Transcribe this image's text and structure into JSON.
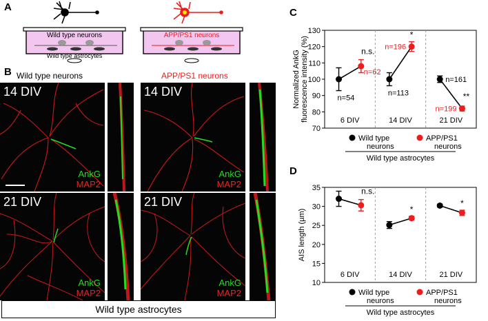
{
  "panels": {
    "a": {
      "letter": "A",
      "dish_left": {
        "top_label": "Wild type neurons",
        "bottom_label": "Wild type astrocytes"
      },
      "dish_right": {
        "top_label": "APP/PS1 neurons"
      }
    },
    "b": {
      "letter": "B",
      "col_left": "Wild type neurons",
      "col_right": "APP/PS1 neurons",
      "row1_label": "14 DIV",
      "row2_label": "21 DIV",
      "stain_green": "AnkG",
      "stain_red": "MAP2",
      "bottom_box": "Wild type astrocytes"
    },
    "c": {
      "letter": "C"
    },
    "d": {
      "letter": "D"
    }
  },
  "colors": {
    "wild_type": "#000000",
    "app_ps1": "#ee1c1c",
    "ankg": "#22dd22",
    "map2": "#ee2222"
  },
  "chart_data": [
    {
      "id": "C",
      "type": "line",
      "ylabel": "Normalized AnkG fluorescence intensity (%)",
      "ylim": [
        70,
        130
      ],
      "yticks": [
        70,
        80,
        90,
        100,
        110,
        120,
        130
      ],
      "groups": [
        "6 DIV",
        "14 DIV",
        "21 DIV"
      ],
      "series": [
        {
          "name": "Wild type neurons",
          "color": "#000000",
          "values": [
            100,
            100,
            100
          ],
          "errors": [
            7,
            4,
            2
          ],
          "n_labels": [
            "n=54",
            "n=113",
            "n=161"
          ]
        },
        {
          "name": "APP/PS1 neurons",
          "color": "#ee1c1c",
          "values": [
            108,
            120,
            82
          ],
          "errors": [
            4,
            3,
            1.5
          ],
          "n_labels": [
            "n=62",
            "n=196",
            "n=199"
          ]
        }
      ],
      "significance": [
        "n.s.",
        "*",
        "**"
      ],
      "legend_caption": "Wild type astrocytes",
      "legend_placement": "bottom"
    },
    {
      "id": "D",
      "type": "line",
      "ylabel": "AIS length (µm)",
      "ylim": [
        10,
        35
      ],
      "yticks": [
        10,
        15,
        20,
        25,
        30,
        35
      ],
      "groups": [
        "6 DIV",
        "14 DIV",
        "21 DIV"
      ],
      "series": [
        {
          "name": "Wild type neurons",
          "color": "#000000",
          "values": [
            32,
            25.1,
            30.2
          ],
          "errors": [
            2,
            0.9,
            0.4
          ]
        },
        {
          "name": "APP/PS1 neurons",
          "color": "#ee1c1c",
          "values": [
            30.3,
            26.9,
            28.3
          ],
          "errors": [
            1.5,
            0.5,
            0.7
          ]
        }
      ],
      "significance": [
        "n.s.",
        "*",
        "*"
      ],
      "legend_caption": "Wild type astrocytes",
      "legend_placement": "bottom"
    }
  ]
}
